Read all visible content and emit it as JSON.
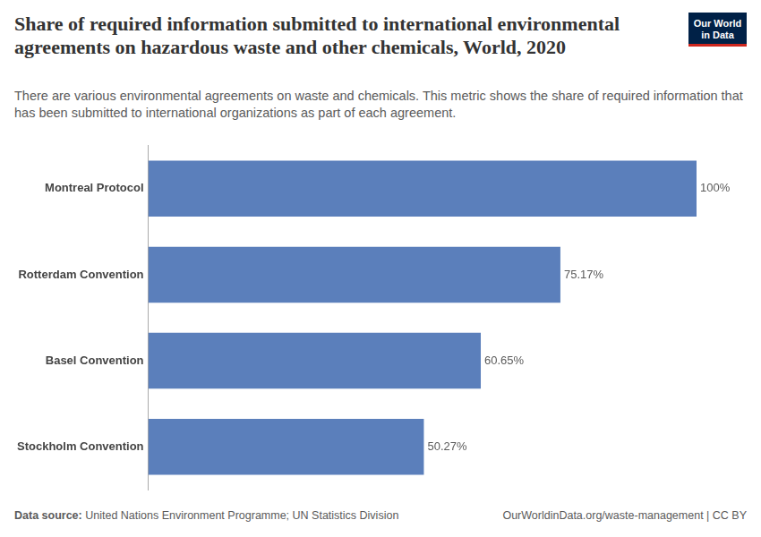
{
  "chart_data": {
    "type": "bar",
    "title": "Share of required information submitted to international environmental agreements on hazardous waste and other chemicals, World, 2020",
    "subtitle": "There are various environmental agreements on waste and chemicals. This metric shows the share of required information that has been submitted to international organizations as part of each agreement.",
    "source_label": "Data source:",
    "source": "United Nations Environment Programme; UN Statistics Division",
    "footer": "OurWorldinData.org/waste-management | CC BY",
    "logo": [
      "Our World",
      "in Data"
    ],
    "orientation": "horizontal",
    "categories": [
      "Montreal Protocol",
      "Rotterdam Convention",
      "Basel Convention",
      "Stockholm Convention"
    ],
    "values": [
      100,
      75.17,
      60.65,
      50.27
    ],
    "value_labels": [
      "100%",
      "75.17%",
      "60.65%",
      "50.27%"
    ],
    "data_labels": true,
    "color": "#5b7fbb",
    "xlim": [
      0,
      100
    ],
    "grid": false,
    "tick_labels": "y"
  }
}
